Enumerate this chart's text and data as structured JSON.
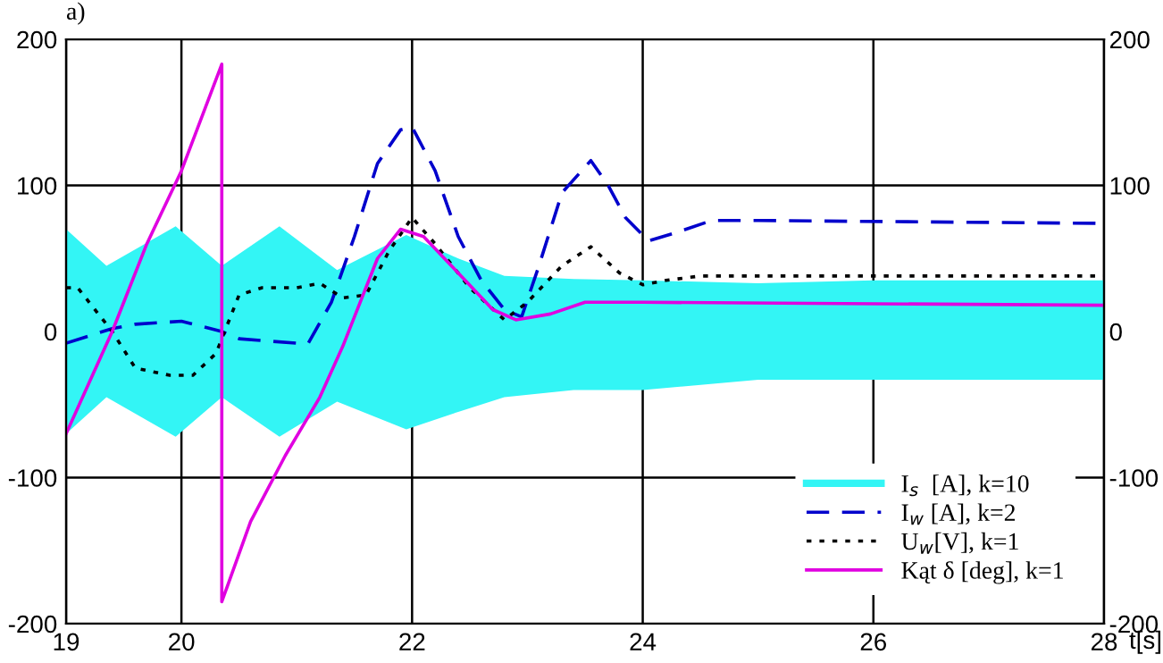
{
  "chart_data": {
    "type": "line",
    "title": "a)",
    "xlabel": "t[s]",
    "xlim": [
      19,
      28
    ],
    "xticks": [
      19,
      20,
      22,
      24,
      26,
      28
    ],
    "ylim": [
      -200,
      200
    ],
    "yticks": [
      -200,
      -100,
      0,
      100,
      200
    ],
    "y2lim": [
      -200,
      200
    ],
    "y2ticks": [
      -200,
      -100,
      0,
      100,
      200
    ],
    "grid": true,
    "legend": "bottom right",
    "series": [
      {
        "name": "I$_{s}$  [A], k=10",
        "type": "area",
        "color": "#33f5f5",
        "x": [
          19,
          19.35,
          19.95,
          20.35,
          20.85,
          21.35,
          21.95,
          22.4,
          22.8,
          23.4,
          24,
          25,
          26,
          27,
          28
        ],
        "values": [
          70,
          45,
          72,
          45,
          72,
          42,
          66,
          50,
          38,
          36,
          35,
          33,
          35,
          35,
          35
        ]
      },
      {
        "type": "area",
        "color": "#33f5f5",
        "x": [
          19,
          19.35,
          19.95,
          20.35,
          20.85,
          21.35,
          21.95,
          22.4,
          22.8,
          23.4,
          24,
          25,
          26,
          27,
          28
        ],
        "values": [
          -70,
          -45,
          -72,
          -45,
          -72,
          -48,
          -67,
          -55,
          -45,
          -40,
          -40,
          -33,
          -33,
          -33,
          -33
        ]
      },
      {
        "name": "I$_{w}$ [A], k=2",
        "color": "#0000cc",
        "line_style": "dashed",
        "x": [
          19,
          19.4,
          19.6,
          20,
          20.2,
          20.35,
          20.5,
          21,
          21.1,
          21.3,
          21.5,
          21.7,
          21.9,
          22,
          22.2,
          22.4,
          22.6,
          22.8,
          22.95,
          23.1,
          23.3,
          23.55,
          23.7,
          23.85,
          24.05,
          24.3,
          24.6,
          25,
          28
        ],
        "values": [
          -8,
          2,
          5,
          7,
          3,
          0,
          -5,
          -8,
          -8,
          20,
          65,
          115,
          138,
          140,
          110,
          65,
          35,
          15,
          10,
          45,
          95,
          117,
          100,
          78,
          62,
          68,
          76,
          76,
          74
        ]
      },
      {
        "name": "U$_{w}$[V], k=1",
        "color": "#000000",
        "line_style": "dotted",
        "x": [
          19,
          19.1,
          19.2,
          19.4,
          19.6,
          19.9,
          20.1,
          20.3,
          20.4,
          20.5,
          20.7,
          21,
          21.2,
          21.4,
          21.6,
          21.8,
          22,
          22.2,
          22.5,
          22.8,
          23,
          23.3,
          23.55,
          23.8,
          24,
          24.2,
          24.5,
          28
        ],
        "values": [
          30,
          30,
          20,
          0,
          -25,
          -30,
          -30,
          -15,
          5,
          25,
          30,
          30,
          33,
          23,
          25,
          55,
          78,
          60,
          30,
          8,
          20,
          45,
          58,
          40,
          32,
          35,
          38,
          38
        ]
      },
      {
        "name": "Kąt δ [deg], k=1",
        "color": "#e000e0",
        "line_style": "solid",
        "x": [
          19,
          19.4,
          19.7,
          20,
          20.35,
          20.35,
          20.6,
          20.9,
          21.2,
          21.4,
          21.5,
          21.7,
          21.9,
          22.1,
          22.4,
          22.7,
          22.9,
          23.2,
          23.5,
          24,
          28
        ],
        "values": [
          -70,
          0,
          60,
          110,
          183,
          -185,
          -130,
          -85,
          -45,
          -10,
          10,
          50,
          70,
          65,
          40,
          15,
          8,
          12,
          20,
          20,
          18
        ]
      }
    ]
  }
}
